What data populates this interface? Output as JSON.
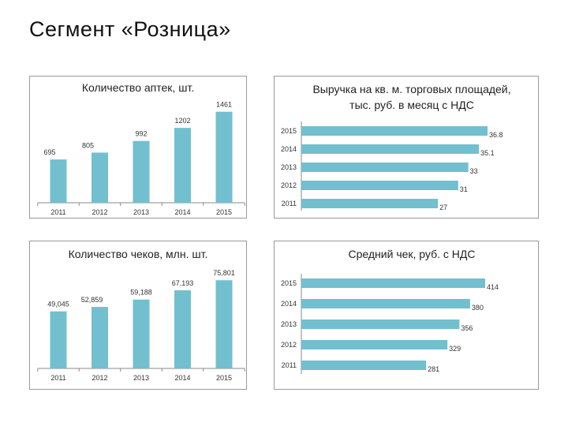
{
  "slide": {
    "title": "Сегмент «Розница»"
  },
  "colors": {
    "bar": "#72bfcf",
    "axis": "#8a8a8a",
    "text": "#333333"
  },
  "chart_data": [
    {
      "type": "bar",
      "orientation": "vertical",
      "title": "Количество аптек, шт.",
      "categories": [
        "2011",
        "2012",
        "2013",
        "2014",
        "2015"
      ],
      "values": [
        695,
        805,
        992,
        1202,
        1461
      ],
      "value_labels": [
        "695",
        "805",
        "992",
        "1202",
        "1461"
      ],
      "ylim": [
        0,
        1520
      ]
    },
    {
      "type": "bar",
      "orientation": "horizontal",
      "title": "Выручка на кв. м. торговых площадей, тыс. руб. в месяц с НДС",
      "categories": [
        "2015",
        "2014",
        "2013",
        "2012",
        "2011"
      ],
      "values": [
        36.8,
        35.1,
        33,
        31,
        27
      ],
      "value_labels": [
        "36.8",
        "35.1",
        "33",
        "31",
        "27"
      ],
      "xlim": [
        0,
        36.8
      ]
    },
    {
      "type": "bar",
      "orientation": "vertical",
      "title": "Количество чеков, млн. шт.",
      "categories": [
        "2011",
        "2012",
        "2013",
        "2014",
        "2015"
      ],
      "values": [
        49.045,
        52.859,
        59.188,
        67.193,
        75.801
      ],
      "value_labels": [
        "49,045",
        "52,859",
        "59,188",
        "67,193",
        "75,801"
      ],
      "ylim": [
        0,
        78
      ]
    },
    {
      "type": "bar",
      "orientation": "horizontal",
      "title": "Средний чек, руб. с НДС",
      "categories": [
        "2015",
        "2014",
        "2013",
        "2012",
        "2011"
      ],
      "values": [
        414,
        380,
        356,
        329,
        281
      ],
      "value_labels": [
        "414",
        "380",
        "356",
        "329",
        "281"
      ],
      "xlim": [
        0,
        414
      ]
    }
  ]
}
